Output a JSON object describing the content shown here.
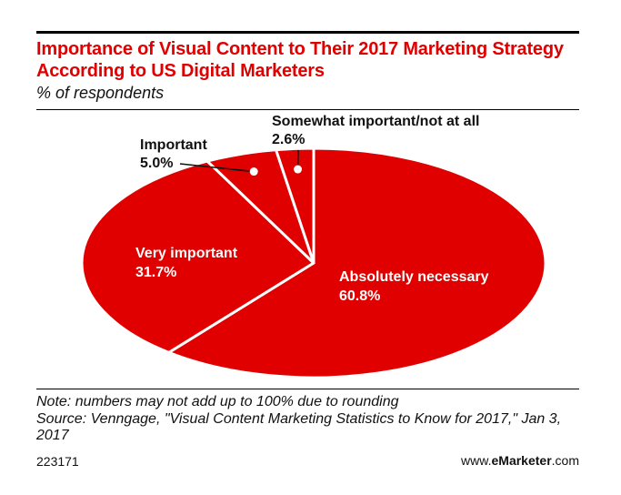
{
  "colors": {
    "accent": "#e00000",
    "text": "#111111",
    "white": "#ffffff"
  },
  "header": {
    "title": "Importance of Visual Content to Their 2017 Marketing Strategy According to US Digital Marketers",
    "subtitle": "% of respondents"
  },
  "footer": {
    "note": "Note: numbers may not add up to 100% due to rounding",
    "source": "Source: Venngage, \"Visual Content Marketing Statistics to Know for 2017,\" Jan 3, 2017",
    "chart_id": "223171",
    "brand_prefix": "www.",
    "brand_e": "e",
    "brand_marketer": "Marketer",
    "brand_suffix": ".com"
  },
  "chart_data": {
    "type": "pie",
    "title": "Importance of Visual Content to Their 2017 Marketing Strategy According to US Digital Marketers",
    "subtitle": "% of respondents",
    "unit": "%",
    "categories": [
      "Absolutely necessary",
      "Very important",
      "Important",
      "Somewhat important/not at all"
    ],
    "values": [
      60.8,
      31.7,
      5.0,
      2.6
    ],
    "data_labels": [
      "60.8%",
      "31.7%",
      "5.0%",
      "2.6%"
    ],
    "legend": "none",
    "grid": false,
    "color": "#e00000"
  }
}
